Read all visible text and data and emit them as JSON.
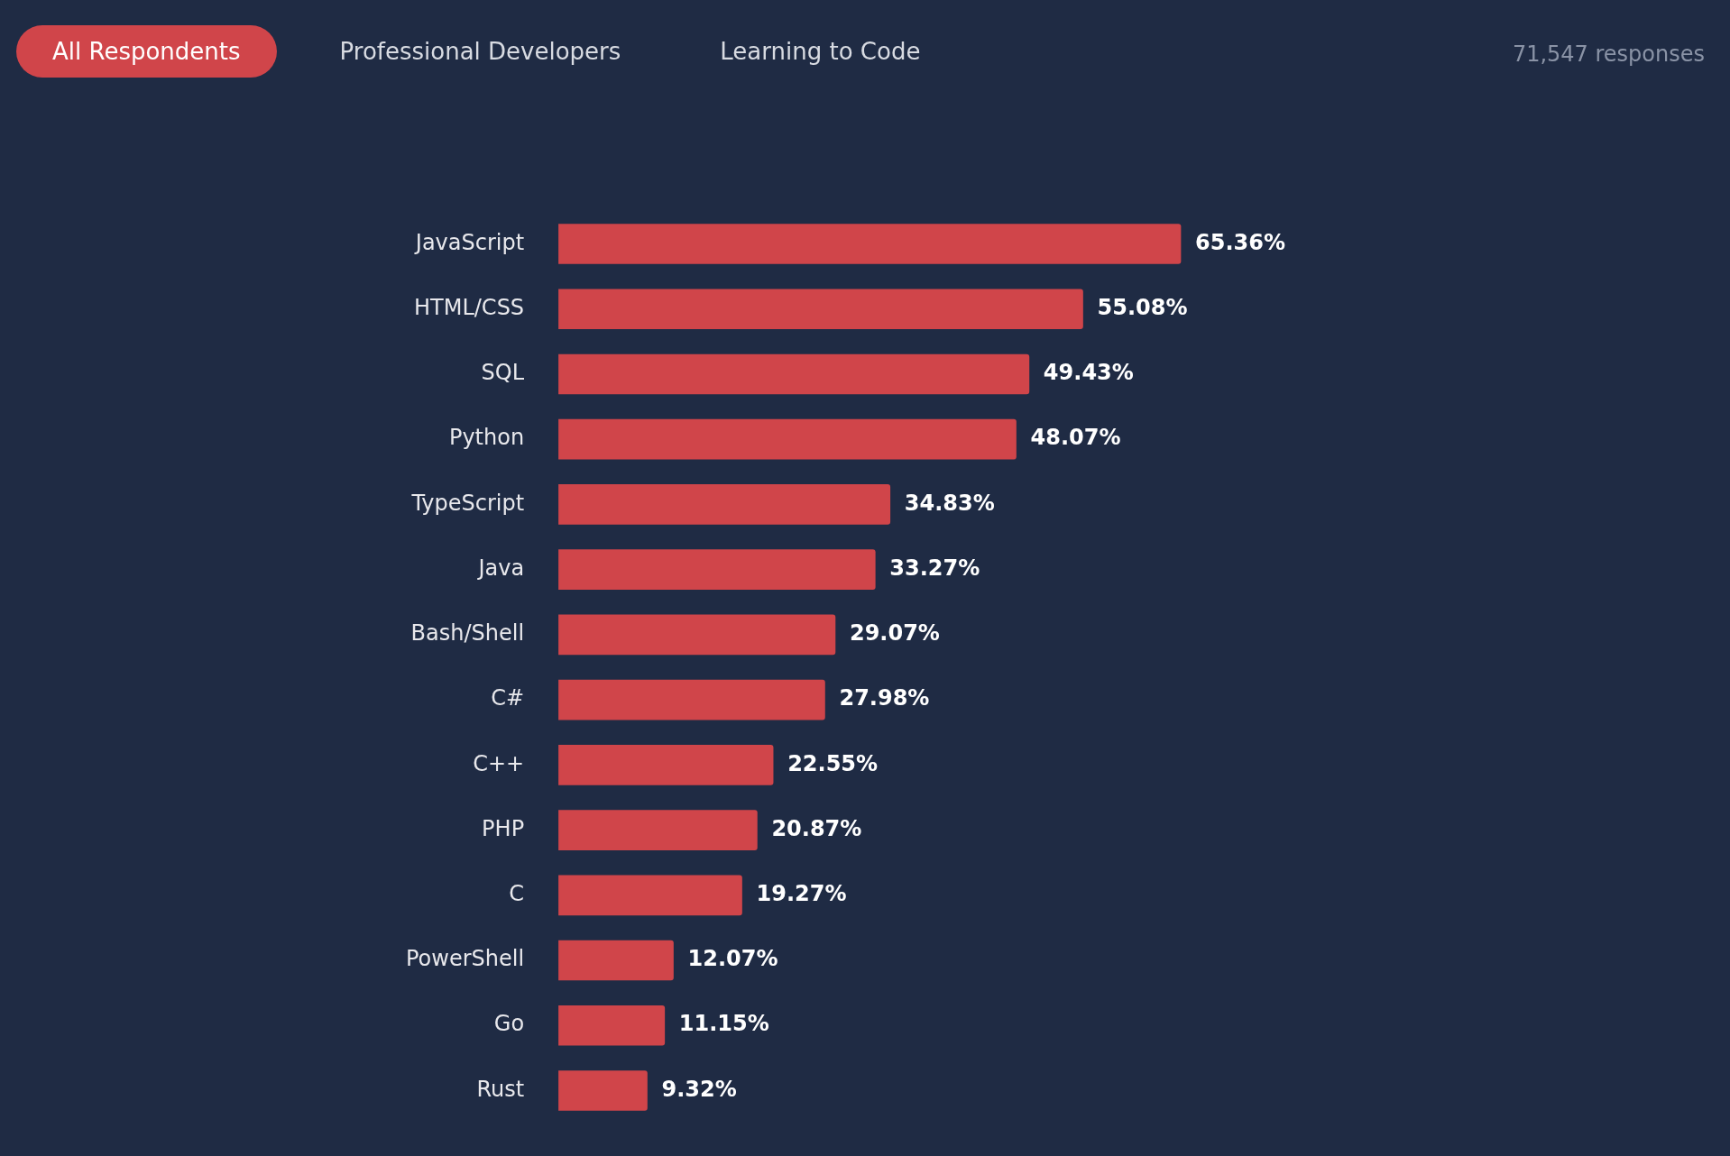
{
  "chart_data": {
    "type": "bar",
    "orientation": "horizontal",
    "categories": [
      "JavaScript",
      "HTML/CSS",
      "SQL",
      "Python",
      "TypeScript",
      "Java",
      "Bash/Shell",
      "C#",
      "C++",
      "PHP",
      "C",
      "PowerShell",
      "Go",
      "Rust"
    ],
    "values": [
      65.36,
      55.08,
      49.43,
      48.07,
      34.83,
      33.27,
      29.07,
      27.98,
      22.55,
      20.87,
      19.27,
      12.07,
      11.15,
      9.32
    ],
    "value_labels": [
      "65.36%",
      "55.08%",
      "49.43%",
      "48.07%",
      "34.83%",
      "33.27%",
      "29.07%",
      "27.98%",
      "22.55%",
      "20.87%",
      "19.27%",
      "12.07%",
      "11.15%",
      "9.32%"
    ],
    "color": "#d0454a",
    "annotations": [
      "All Respondents",
      "Professional Developers",
      "Learning to Code",
      "71,547 responses"
    ]
  }
}
